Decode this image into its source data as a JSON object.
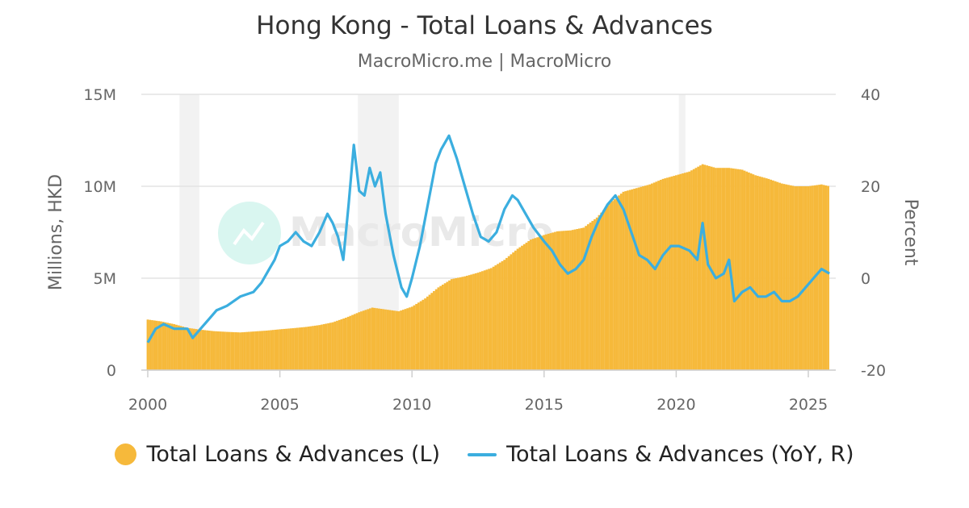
{
  "chart_data": {
    "type": "bar+line",
    "title": "Hong Kong - Total Loans & Advances",
    "subtitle": "MacroMicro.me | MacroMicro",
    "watermark": "MacroMicro",
    "y_left": {
      "label": "Millions, HKD",
      "ticks": [
        "0",
        "5M",
        "10M",
        "15M"
      ],
      "range": [
        0,
        15000000
      ]
    },
    "y_right": {
      "label": "Percent",
      "ticks": [
        "-20",
        "0",
        "20",
        "40"
      ],
      "range": [
        -20,
        40
      ]
    },
    "x": {
      "ticks": [
        "2000",
        "2005",
        "2010",
        "2015",
        "2020",
        "2025"
      ],
      "range": [
        2000,
        2026
      ]
    },
    "grid": true,
    "legend_position": "bottom",
    "shaded_periods": [
      [
        2001.2,
        2001.95
      ],
      [
        2007.95,
        2009.5
      ],
      [
        2020.1,
        2020.35
      ]
    ],
    "series": [
      {
        "name": "Total Loans & Advances (L)",
        "kind": "bar",
        "axis": "left",
        "color": "#f6b93b",
        "unit": "HKD millions",
        "points": [
          [
            2000.0,
            2.75
          ],
          [
            2000.5,
            2.65
          ],
          [
            2001.0,
            2.5
          ],
          [
            2001.5,
            2.3
          ],
          [
            2002.0,
            2.2
          ],
          [
            2002.5,
            2.12
          ],
          [
            2003.0,
            2.08
          ],
          [
            2003.5,
            2.05
          ],
          [
            2004.0,
            2.1
          ],
          [
            2004.5,
            2.15
          ],
          [
            2005.0,
            2.22
          ],
          [
            2005.5,
            2.28
          ],
          [
            2006.0,
            2.35
          ],
          [
            2006.5,
            2.45
          ],
          [
            2007.0,
            2.6
          ],
          [
            2007.5,
            2.85
          ],
          [
            2008.0,
            3.15
          ],
          [
            2008.5,
            3.4
          ],
          [
            2009.0,
            3.3
          ],
          [
            2009.5,
            3.2
          ],
          [
            2010.0,
            3.45
          ],
          [
            2010.5,
            3.9
          ],
          [
            2011.0,
            4.5
          ],
          [
            2011.5,
            4.95
          ],
          [
            2012.0,
            5.1
          ],
          [
            2012.5,
            5.3
          ],
          [
            2013.0,
            5.55
          ],
          [
            2013.5,
            6.0
          ],
          [
            2014.0,
            6.6
          ],
          [
            2014.5,
            7.1
          ],
          [
            2015.0,
            7.35
          ],
          [
            2015.5,
            7.55
          ],
          [
            2016.0,
            7.6
          ],
          [
            2016.5,
            7.75
          ],
          [
            2017.0,
            8.3
          ],
          [
            2017.5,
            9.1
          ],
          [
            2018.0,
            9.7
          ],
          [
            2018.5,
            9.9
          ],
          [
            2019.0,
            10.1
          ],
          [
            2019.5,
            10.4
          ],
          [
            2020.0,
            10.6
          ],
          [
            2020.5,
            10.8
          ],
          [
            2021.0,
            11.2
          ],
          [
            2021.5,
            11.0
          ],
          [
            2022.0,
            11.0
          ],
          [
            2022.5,
            10.9
          ],
          [
            2023.0,
            10.6
          ],
          [
            2023.5,
            10.4
          ],
          [
            2024.0,
            10.15
          ],
          [
            2024.5,
            10.0
          ],
          [
            2025.0,
            10.0
          ],
          [
            2025.5,
            10.1
          ],
          [
            2025.8,
            10.0
          ]
        ]
      },
      {
        "name": "Total Loans & Advances (YoY, R)",
        "kind": "line",
        "axis": "right",
        "color": "#3baedf",
        "unit": "percent",
        "points": [
          [
            2000.0,
            -14
          ],
          [
            2000.3,
            -11
          ],
          [
            2000.6,
            -10
          ],
          [
            2001.0,
            -11
          ],
          [
            2001.5,
            -11
          ],
          [
            2001.7,
            -13
          ],
          [
            2002.0,
            -11
          ],
          [
            2002.3,
            -9
          ],
          [
            2002.6,
            -7
          ],
          [
            2003.0,
            -6
          ],
          [
            2003.5,
            -4
          ],
          [
            2004.0,
            -3
          ],
          [
            2004.3,
            -1
          ],
          [
            2004.6,
            2
          ],
          [
            2004.8,
            4
          ],
          [
            2005.0,
            7
          ],
          [
            2005.3,
            8
          ],
          [
            2005.6,
            10
          ],
          [
            2005.9,
            8
          ],
          [
            2006.2,
            7
          ],
          [
            2006.5,
            10
          ],
          [
            2006.8,
            14
          ],
          [
            2007.0,
            12
          ],
          [
            2007.2,
            9
          ],
          [
            2007.4,
            4
          ],
          [
            2007.6,
            16
          ],
          [
            2007.8,
            29
          ],
          [
            2008.0,
            19
          ],
          [
            2008.2,
            18
          ],
          [
            2008.4,
            24
          ],
          [
            2008.6,
            20
          ],
          [
            2008.8,
            23
          ],
          [
            2009.0,
            14
          ],
          [
            2009.3,
            5
          ],
          [
            2009.6,
            -2
          ],
          [
            2009.8,
            -4
          ],
          [
            2010.0,
            0
          ],
          [
            2010.3,
            7
          ],
          [
            2010.6,
            16
          ],
          [
            2010.9,
            25
          ],
          [
            2011.1,
            28
          ],
          [
            2011.4,
            31
          ],
          [
            2011.7,
            26
          ],
          [
            2012.0,
            20
          ],
          [
            2012.3,
            14
          ],
          [
            2012.6,
            9
          ],
          [
            2012.9,
            8
          ],
          [
            2013.2,
            10
          ],
          [
            2013.5,
            15
          ],
          [
            2013.8,
            18
          ],
          [
            2014.0,
            17
          ],
          [
            2014.3,
            14
          ],
          [
            2014.6,
            11
          ],
          [
            2015.0,
            8
          ],
          [
            2015.3,
            6
          ],
          [
            2015.6,
            3
          ],
          [
            2015.9,
            1
          ],
          [
            2016.2,
            2
          ],
          [
            2016.5,
            4
          ],
          [
            2016.8,
            9
          ],
          [
            2017.1,
            13
          ],
          [
            2017.4,
            16
          ],
          [
            2017.7,
            18
          ],
          [
            2018.0,
            15
          ],
          [
            2018.3,
            10
          ],
          [
            2018.6,
            5
          ],
          [
            2018.9,
            4
          ],
          [
            2019.2,
            2
          ],
          [
            2019.5,
            5
          ],
          [
            2019.8,
            7
          ],
          [
            2020.1,
            7
          ],
          [
            2020.5,
            6
          ],
          [
            2020.8,
            4
          ],
          [
            2021.0,
            12
          ],
          [
            2021.2,
            3
          ],
          [
            2021.5,
            0
          ],
          [
            2021.8,
            1
          ],
          [
            2022.0,
            4
          ],
          [
            2022.2,
            -5
          ],
          [
            2022.5,
            -3
          ],
          [
            2022.8,
            -2
          ],
          [
            2023.1,
            -4
          ],
          [
            2023.4,
            -4
          ],
          [
            2023.7,
            -3
          ],
          [
            2024.0,
            -5
          ],
          [
            2024.3,
            -5
          ],
          [
            2024.6,
            -4
          ],
          [
            2024.9,
            -2
          ],
          [
            2025.2,
            0
          ],
          [
            2025.5,
            2
          ],
          [
            2025.8,
            1
          ]
        ]
      }
    ]
  },
  "legend": {
    "items": [
      {
        "label": "Total Loans & Advances (L)",
        "color": "#f6b93b",
        "shape": "dot"
      },
      {
        "label": "Total Loans & Advances (YoY, R)",
        "color": "#3baedf",
        "shape": "line"
      }
    ]
  },
  "watermark_icon": "macromicro-logo-icon"
}
